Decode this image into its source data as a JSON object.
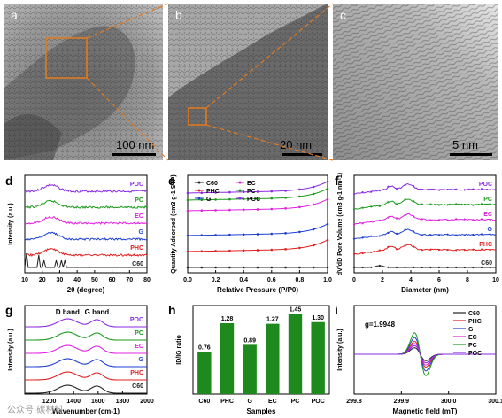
{
  "figure": {
    "watermark": "公众号·碳材料",
    "panels": {
      "a": {
        "letter": "a",
        "scale_bar": "100 nm"
      },
      "b": {
        "letter": "b",
        "scale_bar": "20 nm"
      },
      "c": {
        "letter": "c",
        "scale_bar": "5 nm"
      }
    }
  },
  "colors": {
    "C60": "#222222",
    "PHC": "#e02020",
    "G": "#1f3fd0",
    "EC": "#e020e0",
    "PC": "#1a9a1a",
    "POC": "#8a2be2",
    "bar": "#1e8a1e",
    "orange": "#e07a20"
  },
  "chart_data": [
    {
      "panel": "d",
      "type": "line",
      "xlabel": "2θ (degree)",
      "ylabel": "Intensity (a.u.)",
      "xlim": [
        10,
        80
      ],
      "xticks": [
        10,
        20,
        30,
        40,
        50,
        60,
        70,
        80
      ],
      "series": [
        {
          "name": "POC",
          "color": "#8a2be2"
        },
        {
          "name": "PC",
          "color": "#1a9a1a"
        },
        {
          "name": "EC",
          "color": "#e020e0"
        },
        {
          "name": "G",
          "color": "#1f3fd0"
        },
        {
          "name": "PHC",
          "color": "#e02020"
        },
        {
          "name": "C60",
          "color": "#222222"
        }
      ]
    },
    {
      "panel": "e",
      "type": "line",
      "xlabel": "Relative Pressure (P/P0)",
      "ylabel": "Quantity Adsorped (cm3 g-1 STP)",
      "xlim": [
        0.0,
        1.0
      ],
      "xticks": [
        "0.0",
        "0.2",
        "0.4",
        "0.6",
        "0.8",
        "1.0"
      ],
      "legend": [
        "C60",
        "PHC",
        "G",
        "EC",
        "PC",
        "POC"
      ],
      "legend_placement": "top-left",
      "series": [
        {
          "name": "C60",
          "color": "#222222"
        },
        {
          "name": "PHC",
          "color": "#e02020"
        },
        {
          "name": "G",
          "color": "#1f3fd0"
        },
        {
          "name": "EC",
          "color": "#e020e0"
        },
        {
          "name": "PC",
          "color": "#1a9a1a"
        },
        {
          "name": "POC",
          "color": "#8a2be2"
        }
      ]
    },
    {
      "panel": "f",
      "type": "line",
      "xlabel": "Diameter (nm)",
      "ylabel": "dV/dD Pore Volume (cm3 g-1 nm-1)",
      "xlim": [
        0,
        10
      ],
      "xticks": [
        0,
        2,
        4,
        6,
        8,
        10
      ],
      "series": [
        {
          "name": "POC",
          "color": "#8a2be2"
        },
        {
          "name": "PC",
          "color": "#1a9a1a"
        },
        {
          "name": "EC",
          "color": "#e020e0"
        },
        {
          "name": "G",
          "color": "#1f3fd0"
        },
        {
          "name": "PHC",
          "color": "#e02020"
        },
        {
          "name": "C60",
          "color": "#222222"
        }
      ]
    },
    {
      "panel": "g",
      "type": "line",
      "xlabel": "Wavenumber (cm-1)",
      "ylabel": "Intensity (a.u.)",
      "xlim": [
        1000,
        2000
      ],
      "xticks": [
        1200,
        1400,
        1600,
        1800,
        2000
      ],
      "annotations": [
        "D band",
        "G band"
      ],
      "series": [
        {
          "name": "POC",
          "color": "#8a2be2"
        },
        {
          "name": "PC",
          "color": "#1a9a1a"
        },
        {
          "name": "EC",
          "color": "#e020e0"
        },
        {
          "name": "G",
          "color": "#1f3fd0"
        },
        {
          "name": "PHC",
          "color": "#e02020"
        },
        {
          "name": "C60",
          "color": "#222222"
        }
      ]
    },
    {
      "panel": "h",
      "type": "bar",
      "xlabel": "Samples",
      "ylabel": "ID/IG ratio",
      "categories": [
        "C60",
        "PHC",
        "G",
        "EC",
        "PC",
        "POC"
      ],
      "values": [
        0.76,
        1.28,
        0.89,
        1.27,
        1.45,
        1.3
      ],
      "value_labels": [
        "0.76",
        "1.28",
        "0.89",
        "1.27",
        "1.45",
        "1.30"
      ],
      "ylim": [
        0,
        1.6
      ]
    },
    {
      "panel": "i",
      "type": "line",
      "xlabel": "Magnetic field (mT)",
      "ylabel": "Intensity (a.u.)",
      "xlim": [
        299.8,
        300.1
      ],
      "xticks": [
        "299.8",
        "299.9",
        "300.0",
        "300.1"
      ],
      "annotation": "g=1.9948",
      "legend": [
        "C60",
        "PHC",
        "G",
        "EC",
        "PC",
        "POC"
      ],
      "legend_placement": "top-right",
      "series": [
        {
          "name": "C60",
          "color": "#222222",
          "amplitude": 0.3
        },
        {
          "name": "PHC",
          "color": "#e02020",
          "amplitude": 0.6
        },
        {
          "name": "G",
          "color": "#1f3fd0",
          "amplitude": 0.78
        },
        {
          "name": "EC",
          "color": "#e020e0",
          "amplitude": 0.5
        },
        {
          "name": "PC",
          "color": "#1a9a1a",
          "amplitude": 1.0
        },
        {
          "name": "POC",
          "color": "#8a2be2",
          "amplitude": 0.4
        }
      ]
    }
  ]
}
